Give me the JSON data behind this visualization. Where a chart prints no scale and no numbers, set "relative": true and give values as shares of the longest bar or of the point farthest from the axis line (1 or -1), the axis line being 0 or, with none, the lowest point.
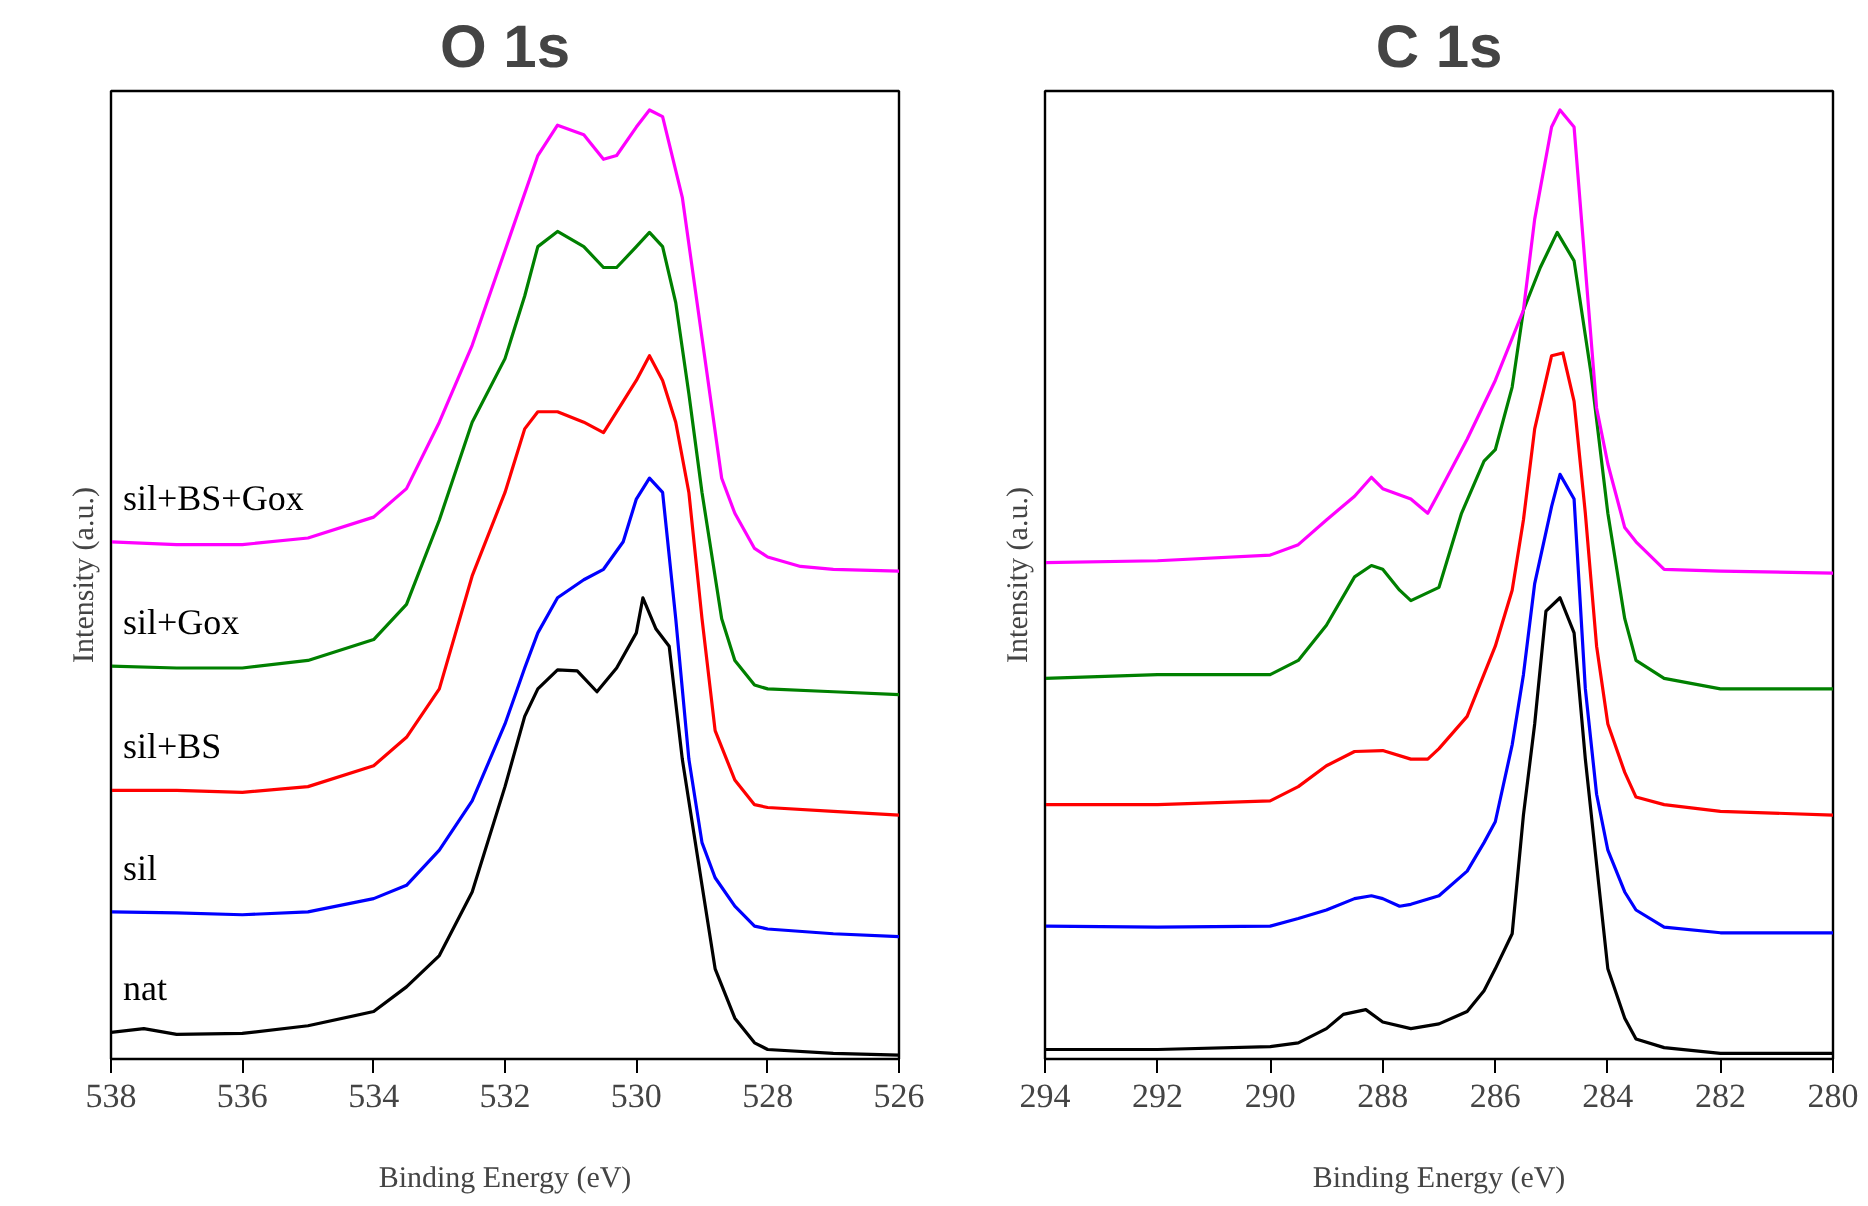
{
  "chart_data": [
    {
      "type": "line",
      "title": "O 1s",
      "xlabel": "Binding Energy (eV)",
      "ylabel": "Intensity (a.u.)",
      "relative": true,
      "xlim": [
        538,
        526
      ],
      "xticks": [
        538,
        536,
        534,
        532,
        530,
        528,
        526
      ],
      "grid": false,
      "line_style": "solid",
      "marker": "none",
      "series": [
        {
          "name": "nat",
          "color": "#000000",
          "x": [
            538,
            537.5,
            537,
            536,
            535,
            534,
            533.5,
            533,
            532.5,
            532,
            531.7,
            531.5,
            531.2,
            530.9,
            530.6,
            530.3,
            530,
            529.9,
            529.7,
            529.5,
            529.3,
            529,
            528.8,
            528.5,
            528.2,
            528,
            527,
            526
          ],
          "values": [
            0.028,
            0.032,
            0.026,
            0.027,
            0.035,
            0.05,
            0.076,
            0.109,
            0.176,
            0.287,
            0.361,
            0.39,
            0.41,
            0.409,
            0.387,
            0.412,
            0.449,
            0.486,
            0.453,
            0.435,
            0.316,
            0.183,
            0.095,
            0.043,
            0.017,
            0.01,
            0.006,
            0.004
          ]
        },
        {
          "name": "sil",
          "color": "#0000ff",
          "x": [
            538,
            537,
            536,
            535,
            534,
            533.5,
            533,
            532.5,
            532,
            531.7,
            531.5,
            531.2,
            530.8,
            530.5,
            530.2,
            530,
            529.8,
            529.6,
            529.4,
            529.2,
            529,
            528.8,
            528.5,
            528.2,
            528,
            527,
            526
          ],
          "values": [
            0.155,
            0.154,
            0.152,
            0.155,
            0.169,
            0.183,
            0.22,
            0.272,
            0.353,
            0.412,
            0.449,
            0.486,
            0.505,
            0.516,
            0.545,
            0.59,
            0.612,
            0.597,
            0.464,
            0.316,
            0.228,
            0.191,
            0.161,
            0.14,
            0.137,
            0.132,
            0.129
          ]
        },
        {
          "name": "sil+BS",
          "color": "#ff0000",
          "x": [
            538,
            537,
            536,
            535,
            534,
            533.5,
            533,
            532.5,
            532,
            531.7,
            531.5,
            531.2,
            530.8,
            530.5,
            530.2,
            530,
            529.8,
            529.6,
            529.4,
            529.2,
            529,
            528.8,
            528.5,
            528.2,
            528,
            527,
            526
          ],
          "values": [
            0.283,
            0.283,
            0.281,
            0.287,
            0.309,
            0.339,
            0.39,
            0.509,
            0.597,
            0.664,
            0.682,
            0.682,
            0.671,
            0.66,
            0.693,
            0.715,
            0.741,
            0.715,
            0.671,
            0.597,
            0.464,
            0.346,
            0.294,
            0.268,
            0.265,
            0.261,
            0.257
          ]
        },
        {
          "name": "sil+Gox",
          "color": "#008000",
          "x": [
            538,
            537,
            536,
            535,
            534,
            533.5,
            533,
            532.5,
            532,
            531.7,
            531.5,
            531.2,
            530.8,
            530.5,
            530.3,
            530,
            529.8,
            529.6,
            529.4,
            529.2,
            529,
            528.7,
            528.5,
            528.2,
            528,
            527,
            526
          ],
          "values": [
            0.414,
            0.412,
            0.412,
            0.42,
            0.442,
            0.479,
            0.568,
            0.671,
            0.738,
            0.804,
            0.856,
            0.872,
            0.856,
            0.834,
            0.834,
            0.856,
            0.871,
            0.856,
            0.797,
            0.701,
            0.597,
            0.464,
            0.42,
            0.394,
            0.39,
            0.387,
            0.384
          ]
        },
        {
          "name": "sil+BS+Gox",
          "color": "#ff00ff",
          "x": [
            538,
            537,
            536,
            535,
            534,
            533.5,
            533,
            532.5,
            532,
            531.5,
            531.2,
            530.8,
            530.5,
            530.3,
            530,
            529.8,
            529.6,
            529.3,
            529,
            528.7,
            528.5,
            528.2,
            528,
            527.5,
            527,
            526
          ],
          "values": [
            0.545,
            0.542,
            0.542,
            0.549,
            0.571,
            0.601,
            0.671,
            0.752,
            0.852,
            0.952,
            0.984,
            0.974,
            0.948,
            0.952,
            0.982,
            1.0,
            0.993,
            0.908,
            0.76,
            0.612,
            0.575,
            0.538,
            0.529,
            0.519,
            0.516,
            0.514
          ]
        }
      ]
    },
    {
      "type": "line",
      "title": "C 1s",
      "xlabel": "Binding Energy (eV)",
      "ylabel": "Intensity (a.u.)",
      "relative": true,
      "xlim": [
        294,
        280
      ],
      "xticks": [
        294,
        292,
        290,
        288,
        286,
        284,
        282,
        280
      ],
      "grid": false,
      "line_style": "solid",
      "marker": "none",
      "series": [
        {
          "color": "#000000",
          "x": [
            294,
            292,
            290,
            289.5,
            289,
            288.7,
            288.3,
            288,
            287.5,
            287,
            286.5,
            286.2,
            286,
            285.7,
            285.5,
            285.3,
            285.1,
            284.85,
            284.6,
            284.4,
            284.2,
            284,
            283.7,
            283.5,
            283,
            282,
            280
          ],
          "values": [
            0.01,
            0.01,
            0.013,
            0.017,
            0.032,
            0.047,
            0.052,
            0.039,
            0.032,
            0.037,
            0.05,
            0.072,
            0.095,
            0.132,
            0.257,
            0.353,
            0.472,
            0.486,
            0.449,
            0.316,
            0.205,
            0.095,
            0.043,
            0.021,
            0.012,
            0.006,
            0.006
          ]
        },
        {
          "color": "#0000ff",
          "x": [
            294,
            292,
            290,
            289.5,
            289,
            288.5,
            288.2,
            288,
            287.7,
            287.5,
            287,
            286.5,
            286.2,
            286,
            285.7,
            285.5,
            285.3,
            285,
            284.85,
            284.6,
            284.4,
            284.2,
            284,
            283.7,
            283.5,
            283,
            282,
            280
          ],
          "values": [
            0.14,
            0.139,
            0.14,
            0.148,
            0.157,
            0.169,
            0.172,
            0.169,
            0.161,
            0.163,
            0.172,
            0.198,
            0.228,
            0.25,
            0.331,
            0.405,
            0.501,
            0.582,
            0.616,
            0.59,
            0.39,
            0.279,
            0.22,
            0.176,
            0.157,
            0.139,
            0.133,
            0.133
          ]
        },
        {
          "color": "#ff0000",
          "x": [
            294,
            292,
            290,
            289.5,
            289,
            288.5,
            288,
            287.5,
            287.2,
            287,
            286.5,
            286,
            285.7,
            285.5,
            285.3,
            285,
            284.8,
            284.6,
            284.4,
            284.2,
            284,
            283.7,
            283.5,
            283,
            282,
            280
          ],
          "values": [
            0.268,
            0.268,
            0.272,
            0.287,
            0.309,
            0.324,
            0.325,
            0.316,
            0.316,
            0.327,
            0.361,
            0.435,
            0.494,
            0.568,
            0.664,
            0.741,
            0.744,
            0.693,
            0.575,
            0.435,
            0.353,
            0.302,
            0.276,
            0.268,
            0.261,
            0.257
          ]
        },
        {
          "color": "#008000",
          "x": [
            294,
            292,
            290,
            289.5,
            289,
            288.5,
            288.2,
            288,
            287.7,
            287.5,
            287,
            286.6,
            286.2,
            286,
            285.7,
            285.5,
            285.2,
            284.9,
            284.6,
            284.3,
            284,
            283.7,
            283.5,
            283,
            282,
            280
          ],
          "values": [
            0.401,
            0.405,
            0.405,
            0.42,
            0.457,
            0.508,
            0.52,
            0.516,
            0.494,
            0.483,
            0.497,
            0.575,
            0.63,
            0.642,
            0.708,
            0.789,
            0.834,
            0.871,
            0.841,
            0.723,
            0.575,
            0.464,
            0.42,
            0.401,
            0.39,
            0.39
          ]
        },
        {
          "color": "#ff00ff",
          "x": [
            294,
            292,
            290,
            289.5,
            289,
            288.5,
            288.2,
            288,
            287.5,
            287.2,
            287,
            286.5,
            286,
            285.5,
            285.3,
            285,
            284.85,
            284.6,
            284.4,
            284.2,
            284,
            283.7,
            283.5,
            283,
            282,
            280
          ],
          "values": [
            0.523,
            0.525,
            0.531,
            0.542,
            0.568,
            0.593,
            0.613,
            0.601,
            0.59,
            0.575,
            0.597,
            0.653,
            0.715,
            0.789,
            0.885,
            0.982,
            1.0,
            0.982,
            0.834,
            0.686,
            0.627,
            0.56,
            0.545,
            0.516,
            0.514,
            0.512
          ]
        }
      ]
    }
  ]
}
